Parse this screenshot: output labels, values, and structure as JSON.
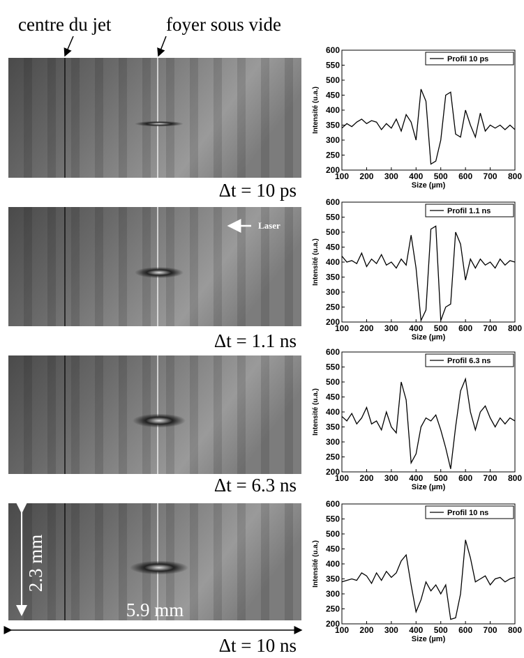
{
  "figure": {
    "top_labels": [
      "centre du jet",
      "foyer sous vide"
    ],
    "delays": [
      "Δt = 10 ps",
      "Δt = 1.1 ns",
      "Δt = 6.3 ns",
      "Δt = 10 ns"
    ],
    "laser": "Laser",
    "height": "2.3 mm",
    "width": "5.9 mm"
  },
  "chart_data": [
    {
      "type": "line",
      "xlabel": "Size (µm)",
      "ylabel": "Intensité (u.a.)",
      "legend": "upper right",
      "x": [
        100,
        120,
        140,
        160,
        180,
        200,
        220,
        240,
        260,
        280,
        300,
        320,
        340,
        360,
        380,
        400,
        420,
        440,
        460,
        480,
        500,
        520,
        540,
        560,
        580,
        600,
        620,
        640,
        660,
        680,
        700,
        720,
        740,
        760,
        780,
        800
      ],
      "series": [
        {
          "name": "Profil 10 ps",
          "color": "#000000",
          "values": [
            340,
            355,
            345,
            360,
            370,
            355,
            365,
            360,
            335,
            355,
            340,
            370,
            330,
            385,
            360,
            300,
            470,
            430,
            220,
            230,
            300,
            450,
            460,
            320,
            310,
            400,
            350,
            310,
            390,
            330,
            350,
            340,
            350,
            335,
            350,
            335
          ]
        }
      ],
      "xlim": [
        100,
        800
      ],
      "ylim": [
        200,
        600
      ],
      "xticks": [
        100,
        200,
        300,
        400,
        500,
        600,
        700,
        800
      ],
      "yticks": [
        200,
        250,
        300,
        350,
        400,
        450,
        500,
        550,
        600
      ]
    },
    {
      "type": "line",
      "xlabel": "Size (µm)",
      "ylabel": "Intensité (u.a.)",
      "legend": "upper right",
      "x": [
        100,
        120,
        140,
        160,
        180,
        200,
        220,
        240,
        260,
        280,
        300,
        320,
        340,
        360,
        380,
        400,
        420,
        440,
        460,
        480,
        500,
        520,
        540,
        560,
        580,
        600,
        620,
        640,
        660,
        680,
        700,
        720,
        740,
        760,
        780,
        800
      ],
      "series": [
        {
          "name": "Profil 1.1 ns",
          "color": "#000000",
          "values": [
            420,
            400,
            405,
            395,
            430,
            385,
            410,
            395,
            425,
            390,
            400,
            380,
            410,
            390,
            490,
            380,
            205,
            240,
            510,
            520,
            205,
            250,
            260,
            500,
            460,
            340,
            410,
            380,
            410,
            390,
            400,
            380,
            410,
            390,
            405,
            400
          ]
        }
      ],
      "xlim": [
        100,
        800
      ],
      "ylim": [
        200,
        600
      ],
      "xticks": [
        100,
        200,
        300,
        400,
        500,
        600,
        700,
        800
      ],
      "yticks": [
        200,
        250,
        300,
        350,
        400,
        450,
        500,
        550,
        600
      ]
    },
    {
      "type": "line",
      "xlabel": "Size (µm)",
      "ylabel": "Intensité (u.a.)",
      "legend": "upper right",
      "x": [
        100,
        120,
        140,
        160,
        180,
        200,
        220,
        240,
        260,
        280,
        300,
        320,
        340,
        360,
        380,
        400,
        420,
        440,
        460,
        480,
        500,
        520,
        540,
        560,
        580,
        600,
        620,
        640,
        660,
        680,
        700,
        720,
        740,
        760,
        780,
        800
      ],
      "series": [
        {
          "name": "Profil 6.3 ns",
          "color": "#000000",
          "values": [
            385,
            370,
            395,
            360,
            380,
            415,
            360,
            370,
            340,
            400,
            350,
            330,
            500,
            440,
            230,
            260,
            350,
            380,
            370,
            390,
            340,
            280,
            210,
            350,
            470,
            510,
            400,
            340,
            400,
            420,
            380,
            350,
            380,
            360,
            380,
            370
          ]
        }
      ],
      "xlim": [
        100,
        800
      ],
      "ylim": [
        200,
        600
      ],
      "xticks": [
        100,
        200,
        300,
        400,
        500,
        600,
        700,
        800
      ],
      "yticks": [
        200,
        250,
        300,
        350,
        400,
        450,
        500,
        550,
        600
      ]
    },
    {
      "type": "line",
      "xlabel": "Size (µm)",
      "ylabel": "Intensité (u.a.)",
      "legend": "upper right",
      "x": [
        100,
        120,
        140,
        160,
        180,
        200,
        220,
        240,
        260,
        280,
        300,
        320,
        340,
        360,
        380,
        400,
        420,
        440,
        460,
        480,
        500,
        520,
        540,
        560,
        580,
        600,
        620,
        640,
        660,
        680,
        700,
        720,
        740,
        760,
        780,
        800
      ],
      "series": [
        {
          "name": "Profil 10 ns",
          "color": "#000000",
          "values": [
            340,
            345,
            350,
            345,
            370,
            360,
            335,
            370,
            345,
            375,
            355,
            370,
            410,
            430,
            330,
            240,
            280,
            340,
            310,
            330,
            300,
            330,
            215,
            220,
            300,
            480,
            420,
            340,
            350,
            360,
            330,
            350,
            355,
            340,
            350,
            355
          ]
        }
      ],
      "xlim": [
        100,
        800
      ],
      "ylim": [
        200,
        600
      ],
      "xticks": [
        100,
        200,
        300,
        400,
        500,
        600,
        700,
        800
      ],
      "yticks": [
        200,
        250,
        300,
        350,
        400,
        450,
        500,
        550,
        600
      ]
    }
  ]
}
